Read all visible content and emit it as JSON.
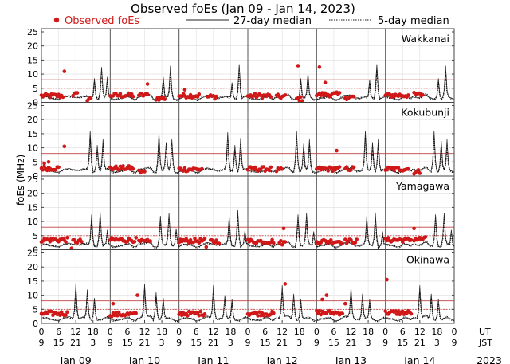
{
  "chart_data": {
    "type": "scatter",
    "title": "Observed foEs (Jan 09 - Jan 14, 2023)",
    "ylabel": "foEs (MHz)",
    "ylim": [
      0,
      25
    ],
    "yticks": [
      0,
      5,
      10,
      15,
      20,
      25
    ],
    "legend": {
      "observed": "Observed foEs",
      "median27": "27-day median",
      "median5": "5-day median"
    },
    "colors": {
      "observed": "#d01818",
      "median27": "#222222",
      "median5": "#111111",
      "threshold": "#c04040",
      "frame": "#444444"
    },
    "thresholds": [
      5,
      8
    ],
    "days": [
      "Jan 09",
      "Jan 10",
      "Jan 11",
      "Jan 12",
      "Jan 13",
      "Jan 14"
    ],
    "year": "2023",
    "ut_label": "UT",
    "jst_label": "JST",
    "ut_ticks": [
      "0",
      "6",
      "12",
      "18",
      "0",
      "6",
      "12",
      "18",
      "0",
      "6",
      "12",
      "18",
      "0",
      "6",
      "12",
      "18",
      "0",
      "6",
      "12",
      "18",
      "0",
      "6",
      "12",
      "18",
      "0"
    ],
    "jst_ticks": [
      "9",
      "15",
      "21",
      "3",
      "9",
      "15",
      "21",
      "3",
      "9",
      "15",
      "21",
      "3",
      "9",
      "15",
      "21",
      "3",
      "9",
      "15",
      "21",
      "3",
      "9",
      "15",
      "21",
      "3",
      "9"
    ],
    "stations": [
      {
        "name": "Wakkanai",
        "baseline": 1.5,
        "spikes": [
          [
            18.5,
            8.5
          ],
          [
            21,
            12.5
          ],
          [
            23,
            9
          ],
          [
            18.5,
            9
          ],
          [
            21,
            13
          ],
          [
            18.5,
            7
          ],
          [
            21,
            13.5
          ],
          [
            18.5,
            8.5
          ],
          [
            21,
            10.5
          ],
          [
            18.5,
            8
          ],
          [
            21,
            13.5
          ],
          [
            18.5,
            8.5
          ],
          [
            21,
            13
          ]
        ],
        "observed": [
          {
            "day": 0,
            "start": 0,
            "end": 7.5,
            "level": 2.3
          },
          {
            "day": 0,
            "start": 11,
            "end": 12.5,
            "level": 2.8
          },
          {
            "day": 0,
            "start": 16,
            "end": 17,
            "level": 1.2
          },
          {
            "day": 1,
            "start": 0,
            "end": 8,
            "level": 2.5
          },
          {
            "day": 1,
            "start": 10,
            "end": 13,
            "level": 2.6
          },
          {
            "day": 1,
            "start": 16,
            "end": 19,
            "level": 1.5
          },
          {
            "day": 2,
            "start": 0,
            "end": 7,
            "level": 2.4
          },
          {
            "day": 2,
            "start": 10,
            "end": 13,
            "level": 2.0
          },
          {
            "day": 3,
            "start": 0,
            "end": 8,
            "level": 2.3
          },
          {
            "day": 3,
            "start": 10,
            "end": 13,
            "level": 2.0
          },
          {
            "day": 3,
            "start": 17,
            "end": 19,
            "level": 1.2
          },
          {
            "day": 4,
            "start": 0,
            "end": 8,
            "level": 2.8
          },
          {
            "day": 4,
            "start": 10,
            "end": 13,
            "level": 1.8
          },
          {
            "day": 5,
            "start": 0,
            "end": 8,
            "level": 2.5
          },
          {
            "day": 5,
            "start": 10,
            "end": 13,
            "level": 2.7
          }
        ],
        "extra_points": [
          [
            0,
            8,
            11
          ],
          [
            1,
            13,
            6.5
          ],
          [
            2,
            2,
            4.5
          ],
          [
            3,
            17.5,
            13
          ],
          [
            4,
            1,
            12.5
          ],
          [
            4,
            3,
            7
          ]
        ]
      },
      {
        "name": "Kokubunji",
        "baseline": 1.8,
        "spikes": [
          [
            17,
            16
          ],
          [
            19.5,
            11
          ],
          [
            21.5,
            13
          ],
          [
            17,
            15.5
          ],
          [
            19.5,
            12
          ],
          [
            21.5,
            13
          ],
          [
            17,
            15.5
          ],
          [
            19.5,
            11
          ],
          [
            21.5,
            13.5
          ],
          [
            17,
            16
          ],
          [
            19.5,
            11.5
          ],
          [
            21.5,
            13
          ],
          [
            17,
            16
          ],
          [
            19.5,
            12
          ],
          [
            21.5,
            13
          ],
          [
            17,
            16
          ],
          [
            19.5,
            12.5
          ],
          [
            21.5,
            13
          ]
        ],
        "observed": [
          {
            "day": 0,
            "start": 0,
            "end": 6,
            "level": 2.8
          },
          {
            "day": 1,
            "start": 0,
            "end": 8,
            "level": 2.8
          },
          {
            "day": 1,
            "start": 10,
            "end": 12,
            "level": 1.5
          },
          {
            "day": 2,
            "start": 0,
            "end": 8,
            "level": 2.4
          },
          {
            "day": 3,
            "start": 0,
            "end": 8,
            "level": 2.5
          },
          {
            "day": 3,
            "start": 10,
            "end": 12,
            "level": 2.0
          },
          {
            "day": 4,
            "start": 0,
            "end": 8,
            "level": 2.5
          },
          {
            "day": 4,
            "start": 10,
            "end": 13,
            "level": 2.6
          },
          {
            "day": 5,
            "start": 0,
            "end": 8,
            "level": 2.5
          },
          {
            "day": 5,
            "start": 10,
            "end": 12,
            "level": 1.5
          }
        ],
        "extra_points": [
          [
            0,
            8,
            10.5
          ],
          [
            4,
            7,
            9
          ],
          [
            0,
            1,
            4.5
          ],
          [
            0,
            2.5,
            5
          ]
        ]
      },
      {
        "name": "Yamagawa",
        "baseline": 1.5,
        "spikes": [
          [
            17.5,
            12.5
          ],
          [
            20.5,
            13.5
          ],
          [
            23,
            7
          ],
          [
            17.5,
            12
          ],
          [
            20.5,
            13
          ],
          [
            23,
            7.5
          ],
          [
            17.5,
            12
          ],
          [
            20.5,
            14
          ],
          [
            23,
            7
          ],
          [
            17.5,
            12.5
          ],
          [
            20.5,
            13
          ],
          [
            23,
            6.5
          ],
          [
            17.5,
            12
          ],
          [
            20.5,
            13
          ],
          [
            23,
            6.5
          ],
          [
            17.5,
            12.5
          ],
          [
            20.5,
            13
          ],
          [
            23,
            7
          ]
        ],
        "observed": [
          {
            "day": 0,
            "start": 0,
            "end": 9,
            "level": 3.5
          },
          {
            "day": 0,
            "start": 11,
            "end": 14,
            "level": 3.0
          },
          {
            "day": 1,
            "start": 0,
            "end": 9,
            "level": 3.5
          },
          {
            "day": 1,
            "start": 10,
            "end": 14,
            "level": 2.8
          },
          {
            "day": 2,
            "start": 0,
            "end": 9,
            "level": 3.2
          },
          {
            "day": 2,
            "start": 11,
            "end": 14,
            "level": 3.0
          },
          {
            "day": 3,
            "start": 0,
            "end": 9,
            "level": 3.0
          },
          {
            "day": 3,
            "start": 11,
            "end": 13,
            "level": 2.5
          },
          {
            "day": 4,
            "start": 0,
            "end": 9,
            "level": 3.0
          },
          {
            "day": 4,
            "start": 10,
            "end": 14,
            "level": 3.0
          },
          {
            "day": 5,
            "start": 0,
            "end": 9,
            "level": 3.5
          },
          {
            "day": 5,
            "start": 10,
            "end": 14,
            "level": 3.8
          }
        ],
        "extra_points": [
          [
            5,
            10,
            7.5
          ],
          [
            0,
            10.5,
            0.5
          ],
          [
            2,
            9.5,
            1.0
          ],
          [
            3,
            12.5,
            7.5
          ]
        ]
      },
      {
        "name": "Okinawa",
        "baseline": 1.5,
        "spikes": [
          [
            12,
            14
          ],
          [
            16,
            12
          ],
          [
            18.5,
            9
          ],
          [
            12,
            14
          ],
          [
            16,
            11
          ],
          [
            18.5,
            9
          ],
          [
            12,
            13.5
          ],
          [
            16,
            10
          ],
          [
            18.5,
            8.5
          ],
          [
            12,
            13.5
          ],
          [
            16,
            10.5
          ],
          [
            18.5,
            8.5
          ],
          [
            12,
            13
          ],
          [
            16,
            10.5
          ],
          [
            18.5,
            8.5
          ],
          [
            12,
            13.5
          ],
          [
            16,
            10.5
          ],
          [
            18.5,
            8.5
          ]
        ],
        "observed": [
          {
            "day": 0,
            "start": 0,
            "end": 9,
            "level": 3.5
          },
          {
            "day": 1,
            "start": 0,
            "end": 9,
            "level": 3.2
          },
          {
            "day": 2,
            "start": 0,
            "end": 9,
            "level": 3.5
          },
          {
            "day": 3,
            "start": 0,
            "end": 9,
            "level": 3.5
          },
          {
            "day": 4,
            "start": 0,
            "end": 9,
            "level": 3.8
          },
          {
            "day": 5,
            "start": 0,
            "end": 9,
            "level": 3.8
          }
        ],
        "extra_points": [
          [
            1,
            9.5,
            10
          ],
          [
            3,
            13,
            14
          ],
          [
            4,
            2,
            8.5
          ],
          [
            4,
            3.5,
            10
          ],
          [
            4,
            10,
            7
          ],
          [
            5,
            0.5,
            15.5
          ],
          [
            1,
            1,
            7
          ]
        ]
      }
    ]
  }
}
